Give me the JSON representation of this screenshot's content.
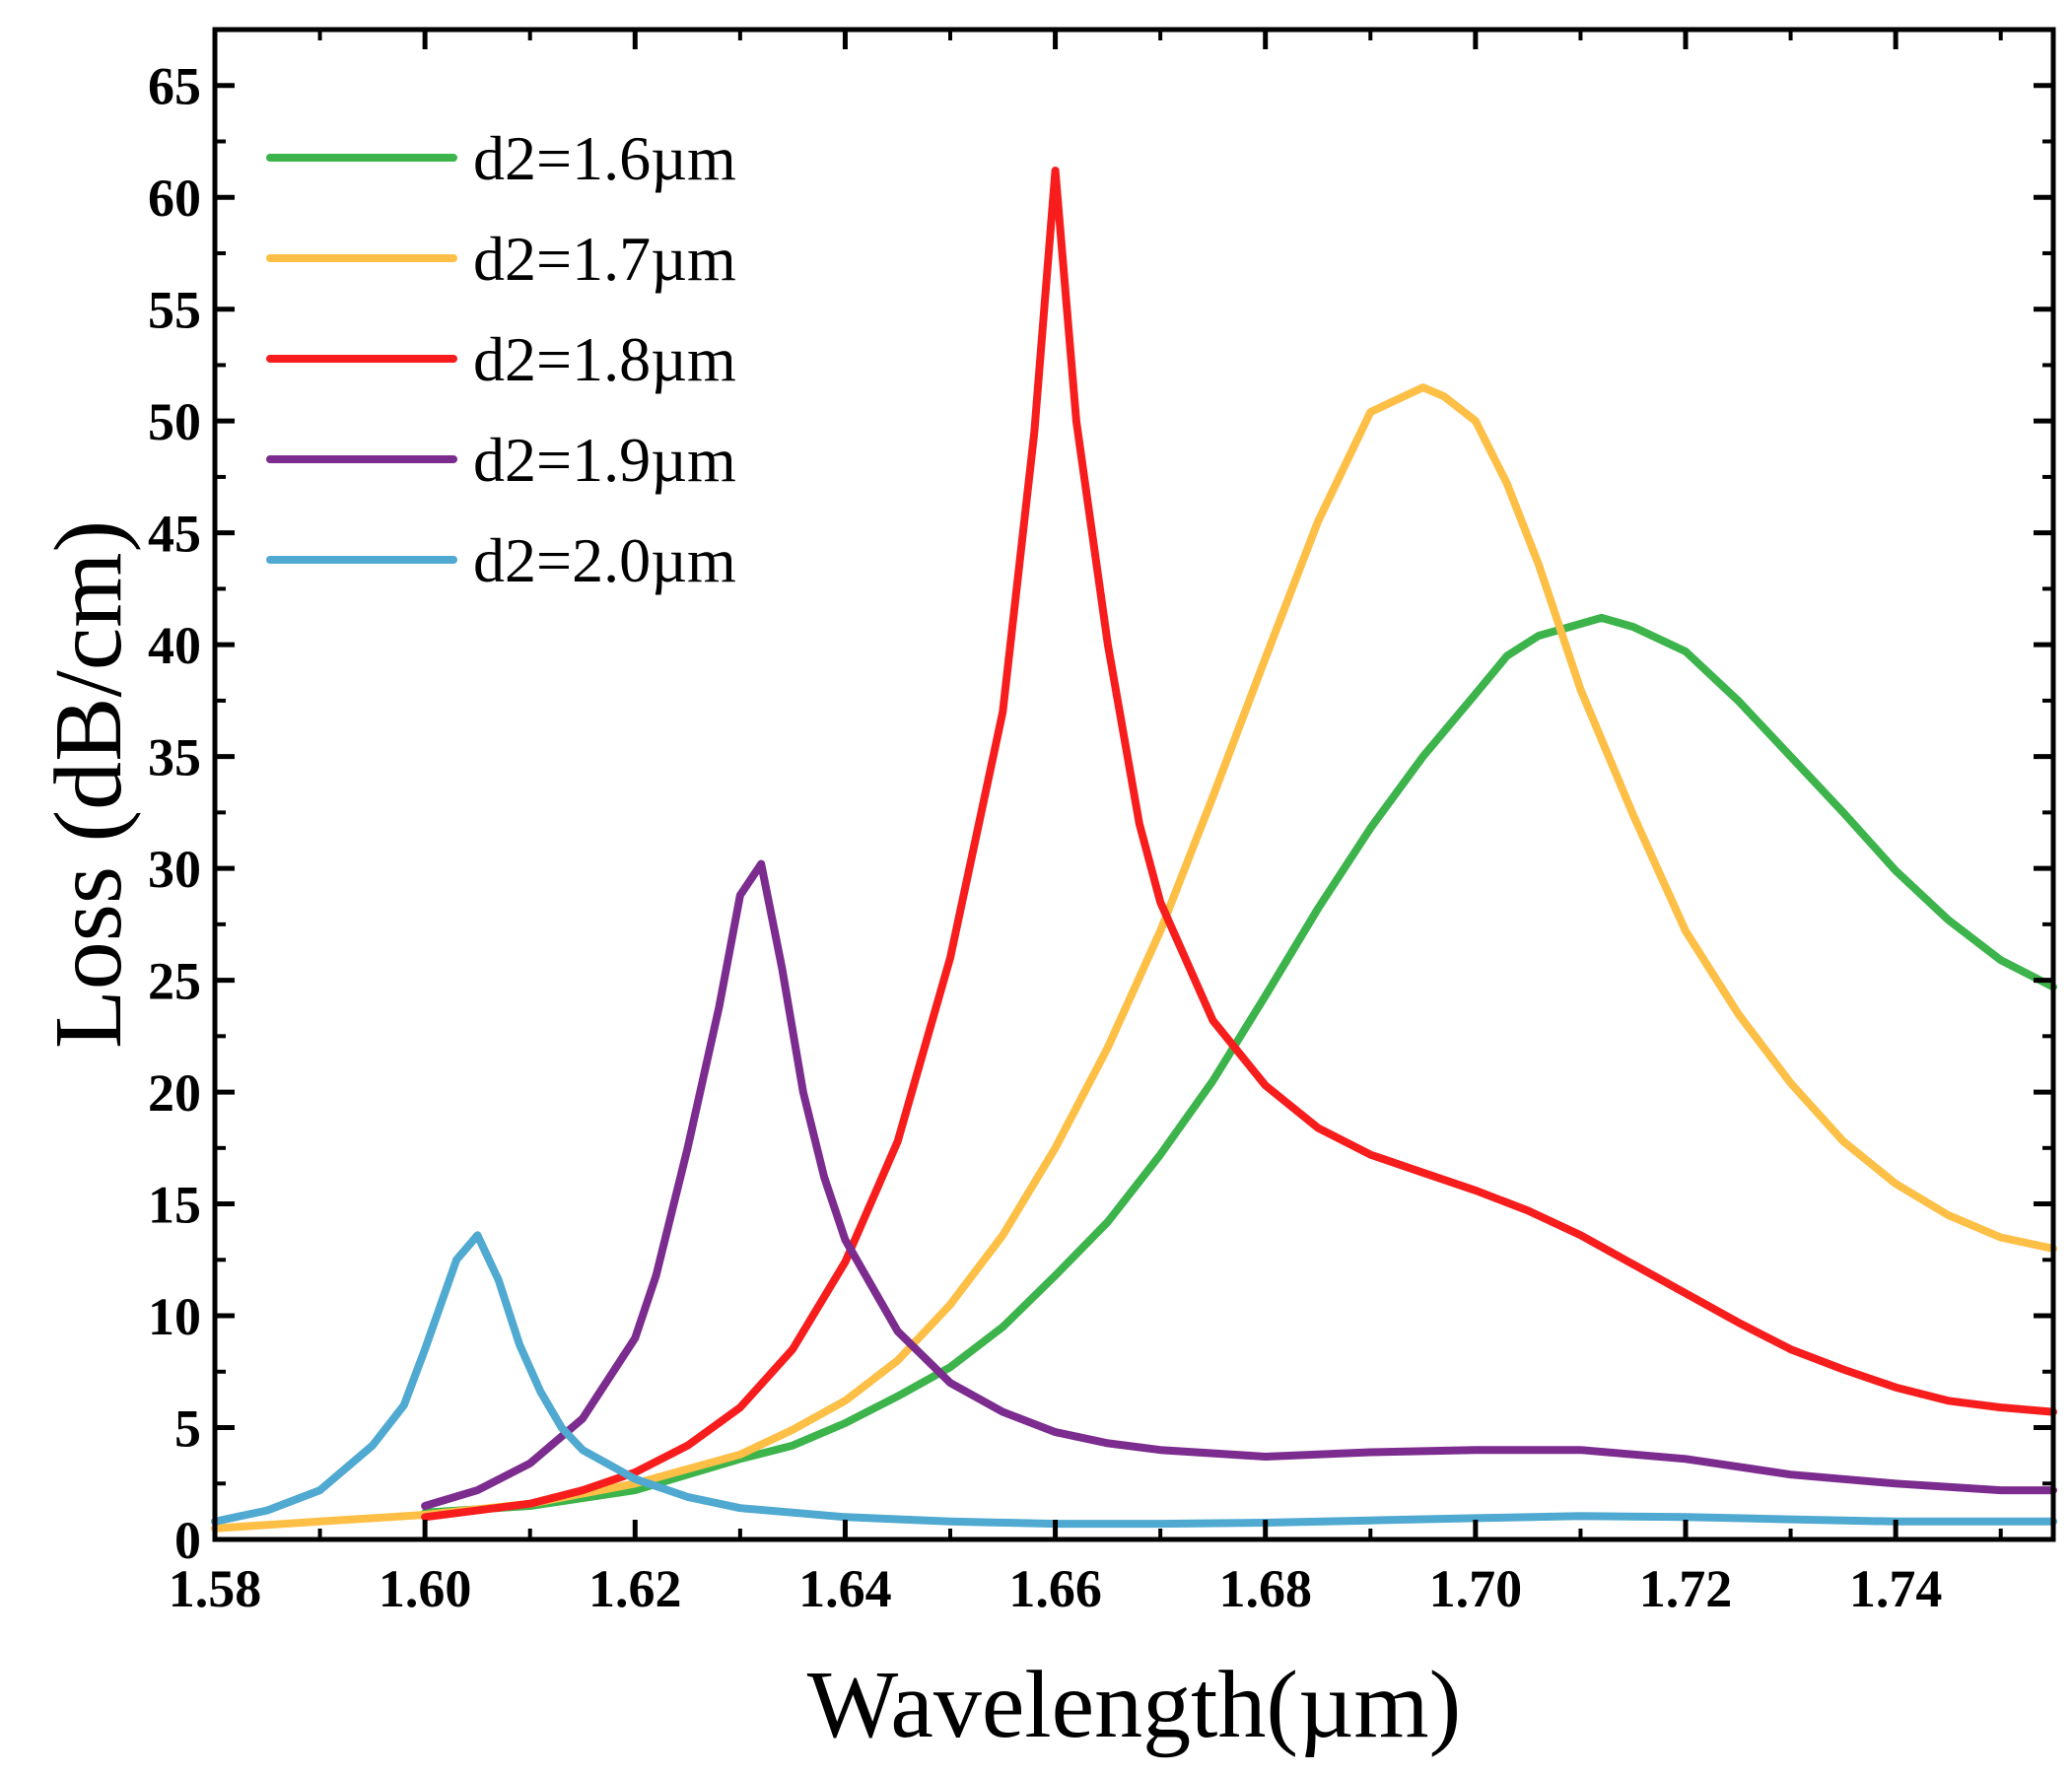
{
  "chart_data": {
    "type": "line",
    "title": "",
    "xlabel": "Wavelength(µm)",
    "ylabel": "Loss (dB/cm)",
    "xlim": [
      1.58,
      1.755
    ],
    "ylim": [
      0,
      67.5
    ],
    "x_ticks": [
      1.58,
      1.6,
      1.62,
      1.64,
      1.66,
      1.68,
      1.7,
      1.72,
      1.74
    ],
    "x_tick_labels": [
      "1.58",
      "1.60",
      "1.62",
      "1.64",
      "1.66",
      "1.68",
      "1.70",
      "1.72",
      "1.74"
    ],
    "y_ticks": [
      0,
      5,
      10,
      15,
      20,
      25,
      30,
      35,
      40,
      45,
      50,
      55,
      60,
      65
    ],
    "y_tick_labels": [
      "0",
      "5",
      "10",
      "15",
      "20",
      "25",
      "30",
      "35",
      "40",
      "45",
      "50",
      "55",
      "60",
      "65"
    ],
    "grid": false,
    "legend_position": "top-left",
    "series": [
      {
        "name": "d2=1.6µm",
        "color": "#3cb44b",
        "x": [
          1.6,
          1.61,
          1.62,
          1.625,
          1.63,
          1.635,
          1.64,
          1.645,
          1.65,
          1.655,
          1.66,
          1.665,
          1.67,
          1.675,
          1.68,
          1.685,
          1.69,
          1.695,
          1.7,
          1.703,
          1.706,
          1.709,
          1.712,
          1.715,
          1.72,
          1.725,
          1.73,
          1.735,
          1.74,
          1.745,
          1.75,
          1.755
        ],
        "y": [
          1.2,
          1.5,
          2.2,
          2.9,
          3.6,
          4.2,
          5.2,
          6.4,
          7.7,
          9.5,
          11.8,
          14.2,
          17.2,
          20.5,
          24.3,
          28.2,
          31.8,
          35.0,
          37.8,
          39.5,
          40.4,
          40.8,
          41.2,
          40.8,
          39.7,
          37.5,
          35.0,
          32.5,
          29.9,
          27.7,
          25.9,
          24.7
        ]
      },
      {
        "name": "d2=1.7µm",
        "color": "#fdbf45",
        "x": [
          1.58,
          1.59,
          1.6,
          1.61,
          1.62,
          1.63,
          1.635,
          1.64,
          1.645,
          1.65,
          1.655,
          1.66,
          1.665,
          1.67,
          1.675,
          1.68,
          1.685,
          1.69,
          1.695,
          1.697,
          1.7,
          1.703,
          1.706,
          1.71,
          1.715,
          1.72,
          1.725,
          1.73,
          1.735,
          1.74,
          1.745,
          1.75,
          1.755
        ],
        "y": [
          0.5,
          0.8,
          1.1,
          1.6,
          2.5,
          3.8,
          4.9,
          6.2,
          8.0,
          10.5,
          13.6,
          17.5,
          22.0,
          27.2,
          33.2,
          39.4,
          45.5,
          50.4,
          51.5,
          51.1,
          50.0,
          47.2,
          43.6,
          38.0,
          32.4,
          27.2,
          23.5,
          20.4,
          17.8,
          15.9,
          14.5,
          13.5,
          13.0
        ]
      },
      {
        "name": "d2=1.8µm",
        "color": "#f71d1d",
        "x": [
          1.6,
          1.61,
          1.615,
          1.62,
          1.625,
          1.63,
          1.635,
          1.64,
          1.645,
          1.65,
          1.655,
          1.658,
          1.66,
          1.662,
          1.665,
          1.668,
          1.67,
          1.675,
          1.68,
          1.685,
          1.69,
          1.695,
          1.7,
          1.705,
          1.71,
          1.715,
          1.72,
          1.725,
          1.73,
          1.735,
          1.74,
          1.745,
          1.75,
          1.755
        ],
        "y": [
          1.0,
          1.6,
          2.2,
          3.0,
          4.2,
          5.9,
          8.5,
          12.4,
          17.8,
          26.0,
          37.0,
          49.5,
          61.2,
          50.0,
          40.0,
          32.0,
          28.5,
          23.2,
          20.3,
          18.4,
          17.2,
          16.4,
          15.6,
          14.7,
          13.6,
          12.3,
          11.0,
          9.7,
          8.5,
          7.6,
          6.8,
          6.2,
          5.9,
          5.7
        ]
      },
      {
        "name": "d2=1.9µm",
        "color": "#7b2c8e",
        "x": [
          1.6,
          1.605,
          1.61,
          1.615,
          1.62,
          1.622,
          1.625,
          1.628,
          1.63,
          1.632,
          1.634,
          1.636,
          1.638,
          1.64,
          1.645,
          1.65,
          1.655,
          1.66,
          1.665,
          1.67,
          1.68,
          1.69,
          1.7,
          1.71,
          1.72,
          1.73,
          1.74,
          1.75,
          1.755
        ],
        "y": [
          1.5,
          2.2,
          3.4,
          5.4,
          9.0,
          11.8,
          17.5,
          23.8,
          28.8,
          30.2,
          25.5,
          20.0,
          16.2,
          13.4,
          9.3,
          7.0,
          5.7,
          4.8,
          4.3,
          4.0,
          3.7,
          3.9,
          4.0,
          4.0,
          3.6,
          2.9,
          2.5,
          2.2,
          2.2
        ]
      },
      {
        "name": "d2=2.0µm",
        "color": "#4fa9d0",
        "x": [
          1.58,
          1.585,
          1.59,
          1.595,
          1.598,
          1.6,
          1.603,
          1.605,
          1.607,
          1.609,
          1.611,
          1.613,
          1.615,
          1.62,
          1.625,
          1.63,
          1.64,
          1.65,
          1.66,
          1.67,
          1.68,
          1.69,
          1.7,
          1.71,
          1.72,
          1.73,
          1.74,
          1.75,
          1.755
        ],
        "y": [
          0.8,
          1.3,
          2.2,
          4.2,
          6.0,
          8.5,
          12.5,
          13.6,
          11.6,
          8.7,
          6.6,
          5.0,
          4.0,
          2.7,
          1.9,
          1.4,
          1.0,
          0.8,
          0.7,
          0.7,
          0.75,
          0.85,
          0.95,
          1.05,
          1.0,
          0.9,
          0.8,
          0.8,
          0.8
        ]
      }
    ]
  }
}
